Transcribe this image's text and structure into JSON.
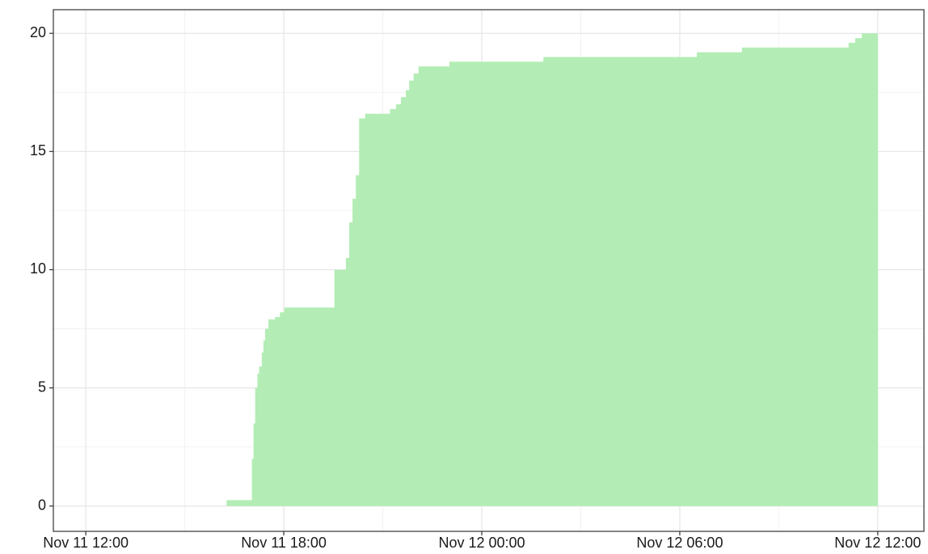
{
  "chart_data": {
    "type": "step-area",
    "color": "#b3edb5",
    "grid": true,
    "x": [
      "Nov 11 15:14",
      "Nov 11 16:16",
      "Nov 11 17:02",
      "Nov 11 17:05",
      "Nov 11 17:08",
      "Nov 11 17:12",
      "Nov 11 17:15",
      "Nov 11 17:20",
      "Nov 11 17:23",
      "Nov 11 17:26",
      "Nov 11 17:32",
      "Nov 11 17:44",
      "Nov 11 17:53",
      "Nov 11 18:01",
      "Nov 11 19:32",
      "Nov 11 19:53",
      "Nov 11 19:59",
      "Nov 11 20:05",
      "Nov 11 20:11",
      "Nov 11 20:17",
      "Nov 11 20:28",
      "Nov 11 21:13",
      "Nov 11 21:24",
      "Nov 11 21:33",
      "Nov 11 21:42",
      "Nov 11 21:48",
      "Nov 11 21:56",
      "Nov 11 22:05",
      "Nov 11 23:01",
      "Nov 12 01:52",
      "Nov 12 06:31",
      "Nov 12 07:53",
      "Nov 12 11:07",
      "Nov 12 11:19",
      "Nov 12 11:31",
      "Nov 12 12:00"
    ],
    "values": [
      0,
      0.25,
      2,
      3.5,
      5,
      5.6,
      5.9,
      6.5,
      7,
      7.5,
      7.9,
      8.0,
      8.2,
      8.4,
      10.0,
      10.5,
      12,
      13,
      14,
      16.4,
      16.6,
      16.8,
      17.0,
      17.3,
      17.6,
      18,
      18.3,
      18.6,
      18.8,
      19.0,
      19.2,
      19.4,
      19.6,
      19.8,
      20.0,
      20.0
    ],
    "xlim": [
      "Nov 11 11:01",
      "Nov 12 13:24"
    ],
    "xticks": [
      "Nov 11 12:00",
      "Nov 11 18:00",
      "Nov 12 00:00",
      "Nov 12 06:00",
      "Nov 12 12:00"
    ],
    "ylim": [
      -1.07,
      21.0
    ],
    "yticks": [
      0,
      5,
      10,
      15,
      20
    ]
  }
}
